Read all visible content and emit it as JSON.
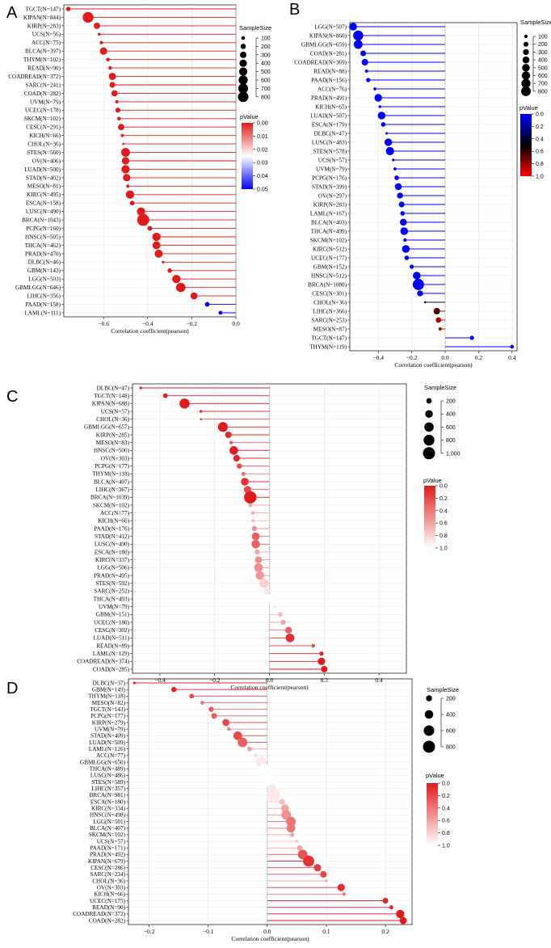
{
  "chart_data": [
    {
      "panel": "A",
      "type": "scatter",
      "xlabel": "Correlation coefficient(pearson)",
      "xlim": [
        -0.78,
        0.0
      ],
      "xticks": [
        -0.6,
        -0.4,
        -0.2,
        0.0
      ],
      "xtick_labels": [
        "−0.6",
        "−0.4",
        "−0.2",
        "0.0"
      ],
      "size_legend": {
        "title": "SampleSize",
        "values": [
          100,
          200,
          300,
          400,
          500,
          600,
          700,
          800
        ],
        "labels": [
          "100",
          "200",
          "300",
          "400",
          "500",
          "600",
          "700",
          "800"
        ]
      },
      "color_legend": {
        "title": "pValue",
        "min": 0.0,
        "max": 0.05,
        "ticks": [
          "0.00",
          "0.01",
          "0.02",
          "0.03",
          "0.04",
          "0.05"
        ],
        "colors": [
          "#e31a1c",
          "#ffffff",
          "#0000ff"
        ]
      },
      "categories": [
        "TGCT(N=147)",
        "KIPAN(N=844)",
        "KIRP(N=283)",
        "UCS(N=56)",
        "ACC(N=75)",
        "BLCA(N=397)",
        "THYM(N=102)",
        "READ(N=90)",
        "COADREAD(N=372)",
        "SARC(N=241)",
        "COAD(N=282)",
        "UVM(N=79)",
        "UCEC(N=178)",
        "SKCM(N=102)",
        "CESC(N=291)",
        "KICH(N=66)",
        "CHOL(N=36)",
        "STES(N=560)",
        "OV(N=406)",
        "LUAD(N=500)",
        "STAD(N=402)",
        "MESO(N=81)",
        "KIRC(N=495)",
        "ESCA(N=158)",
        "LUSC(N=490)",
        "BRCA(N=1043)",
        "PCPG(N=160)",
        "HNSC(N=505)",
        "THCA(N=462)",
        "PRAD(N=470)",
        "DLBC(N=46)",
        "GBM(N=143)",
        "LGG(N=503)",
        "GBMLGG(N=646)",
        "LIHC(N=356)",
        "PAAD(N=158)",
        "LAML(N=111)"
      ],
      "x": [
        -0.76,
        -0.67,
        -0.63,
        -0.62,
        -0.61,
        -0.6,
        -0.58,
        -0.57,
        -0.56,
        -0.56,
        -0.55,
        -0.54,
        -0.535,
        -0.53,
        -0.52,
        -0.515,
        -0.51,
        -0.5,
        -0.5,
        -0.5,
        -0.495,
        -0.49,
        -0.48,
        -0.47,
        -0.43,
        -0.42,
        -0.39,
        -0.36,
        -0.36,
        -0.35,
        -0.33,
        -0.3,
        -0.27,
        -0.25,
        -0.19,
        -0.13,
        -0.07
      ],
      "n": [
        147,
        844,
        283,
        56,
        75,
        397,
        102,
        90,
        372,
        241,
        282,
        79,
        178,
        102,
        291,
        66,
        36,
        560,
        406,
        500,
        402,
        81,
        495,
        158,
        490,
        1043,
        160,
        505,
        462,
        470,
        46,
        143,
        503,
        646,
        356,
        158,
        111
      ],
      "p": [
        0,
        0,
        0,
        0,
        0,
        0,
        0,
        0,
        0,
        0,
        0,
        0,
        0,
        0,
        0,
        0,
        0,
        0,
        0,
        0,
        0,
        0,
        0,
        0,
        0,
        0,
        0,
        0,
        0,
        0,
        0,
        0,
        0,
        0,
        0,
        0.05,
        0.05
      ]
    },
    {
      "panel": "B",
      "type": "scatter",
      "xlabel": "Correlation coefficient(pearson)",
      "xlim": [
        -0.57,
        0.43
      ],
      "xticks": [
        -0.4,
        -0.2,
        0.0,
        0.2,
        0.4
      ],
      "xtick_labels": [
        "−0.4",
        "−0.2",
        "0.0",
        "0.2",
        "0.4"
      ],
      "size_legend": {
        "title": "SampleSize",
        "values": [
          100,
          200,
          300,
          400,
          500,
          600,
          700,
          800
        ],
        "labels": [
          "100",
          "200",
          "300",
          "400",
          "500",
          "600",
          "700",
          "800"
        ]
      },
      "color_legend": {
        "title": "pValue",
        "min": 0.0,
        "max": 1.0,
        "ticks": [
          "0.0",
          "0.2",
          "0.4",
          "0.6",
          "0.8",
          "1.0"
        ],
        "colors": [
          "#0000ff",
          "#000000",
          "#ff0000"
        ]
      },
      "categories": [
        "LGG(N=507)",
        "KIPAN(N=860)",
        "GBMLGG(N=659)",
        "COAD(N=281)",
        "COADREAD(N=369)",
        "READ(N=88)",
        "PAAD(N=156)",
        "ACC(N=76)",
        "PRAD(N=491)",
        "KICH(N=65)",
        "LUAD(N=507)",
        "ESCA(N=179)",
        "DLBC(N=47)",
        "LUSC(N=483)",
        "STES(N=578)",
        "UCS(N=57)",
        "UVM(N=79)",
        "PCPG(N=176)",
        "STAD(N=399)",
        "OV(N=297)",
        "KIRP(N=283)",
        "LAML(N=167)",
        "BLCA(N=403)",
        "THCA(N=499)",
        "SKCM(N=102)",
        "KIRC(N=512)",
        "UCEC(N=177)",
        "GBM(N=152)",
        "HNSC(N=512)",
        "BRCA(N=1080)",
        "CESC(N=301)",
        "CHOL(N=36)",
        "LIHC(N=366)",
        "SARC(N=253)",
        "MESO(N=87)",
        "TGCT(N=147)",
        "THYM(N=119)"
      ],
      "x": [
        -0.55,
        -0.52,
        -0.52,
        -0.49,
        -0.48,
        -0.47,
        -0.46,
        -0.42,
        -0.4,
        -0.39,
        -0.38,
        -0.37,
        -0.35,
        -0.34,
        -0.33,
        -0.31,
        -0.3,
        -0.29,
        -0.28,
        -0.27,
        -0.26,
        -0.255,
        -0.25,
        -0.245,
        -0.24,
        -0.235,
        -0.23,
        -0.2,
        -0.17,
        -0.16,
        -0.15,
        -0.12,
        -0.05,
        -0.04,
        -0.03,
        0.16,
        0.4
      ],
      "n": [
        507,
        860,
        659,
        281,
        369,
        88,
        156,
        76,
        491,
        65,
        507,
        179,
        47,
        483,
        578,
        57,
        79,
        176,
        399,
        297,
        283,
        167,
        403,
        499,
        102,
        512,
        177,
        152,
        512,
        1080,
        301,
        36,
        366,
        253,
        87,
        147,
        119
      ],
      "p": [
        0,
        0,
        0,
        0,
        0,
        0,
        0,
        0,
        0,
        0,
        0,
        0,
        0,
        0,
        0,
        0,
        0,
        0,
        0,
        0,
        0,
        0,
        0,
        0,
        0,
        0,
        0,
        0,
        0,
        0,
        0,
        0.4,
        0.65,
        0.85,
        0.8,
        0,
        0
      ]
    },
    {
      "panel": "C",
      "type": "scatter",
      "xlabel": "Correlation coefficient(pearson)",
      "xlim": [
        -0.5,
        0.5
      ],
      "xticks": [
        -0.4,
        -0.2,
        0.0,
        0.2,
        0.4
      ],
      "xtick_labels": [
        "−0.4",
        "−0.2",
        "0.0",
        "0.2",
        "0.4"
      ],
      "size_legend": {
        "title": "SampleSize",
        "values": [
          200,
          400,
          600,
          800,
          1000
        ],
        "labels": [
          "200",
          "400",
          "600",
          "800",
          "1,000"
        ]
      },
      "color_legend": {
        "title": "pValue",
        "min": 0.0,
        "max": 1.0,
        "ticks": [
          "0.0",
          "0.2",
          "0.4",
          "0.6",
          "0.8",
          "1.0"
        ],
        "colors": [
          "#e31a1c",
          "#ffffff"
        ]
      },
      "categories": [
        "DLBC(N=47)",
        "TGCT(N=148)",
        "KIPAN(N=688)",
        "UCS(N=57)",
        "CHOL(N=36)",
        "GBMLGG(N=657)",
        "KIRP(N=285)",
        "MESO(N=83)",
        "HNSC(N=500)",
        "OV(N=303)",
        "PCPG(N=177)",
        "THYM(N=118)",
        "BLCA(N=407)",
        "LIHC(N=367)",
        "BRCA(N=1039)",
        "SKCM(N=102)",
        "ACC(N=77)",
        "KICH(N=66)",
        "PAAD(N=176)",
        "STAD(N=412)",
        "LUSC(N=490)",
        "ESCA(N=180)",
        "KIRC(N=337)",
        "LGG(N=506)",
        "PRAD(N=495)",
        "STES(N=592)",
        "SARC(N=252)",
        "THCA(N=493)",
        "UVM(N=79)",
        "GBM(N=151)",
        "UCEC(N=180)",
        "CESC(N=302)",
        "LUAD(N=511)",
        "READ(N=89)",
        "LAML(N=129)",
        "COADREAD(N=374)",
        "COAD(N=285)"
      ],
      "x": [
        -0.47,
        -0.38,
        -0.31,
        -0.25,
        -0.25,
        -0.17,
        -0.15,
        -0.14,
        -0.13,
        -0.12,
        -0.11,
        -0.095,
        -0.09,
        -0.08,
        -0.07,
        -0.07,
        -0.06,
        -0.06,
        -0.055,
        -0.05,
        -0.05,
        -0.045,
        -0.04,
        -0.04,
        -0.035,
        -0.02,
        -0.01,
        0.0,
        0.02,
        0.04,
        0.05,
        0.07,
        0.075,
        0.16,
        0.19,
        0.19,
        0.2
      ],
      "n": [
        47,
        148,
        688,
        57,
        36,
        657,
        285,
        83,
        500,
        303,
        177,
        118,
        407,
        367,
        1039,
        102,
        77,
        66,
        176,
        412,
        490,
        180,
        337,
        506,
        495,
        592,
        252,
        493,
        79,
        151,
        180,
        302,
        511,
        89,
        129,
        374,
        285
      ],
      "p": [
        0,
        0.02,
        0,
        0.1,
        0.2,
        0,
        0.05,
        0.3,
        0.01,
        0.05,
        0.2,
        0.4,
        0.1,
        0.2,
        0,
        0.6,
        0.6,
        0.7,
        0.5,
        0.3,
        0.3,
        0.6,
        0.5,
        0.5,
        0.55,
        0.8,
        0.9,
        1.0,
        0.9,
        0.7,
        0.6,
        0.3,
        0.1,
        0.2,
        0.05,
        0.0,
        0.0
      ]
    },
    {
      "panel": "D",
      "type": "scatter",
      "xlabel": "Correlation coefficient(pearson)",
      "xlim": [
        -0.235,
        0.245
      ],
      "xticks": [
        -0.2,
        -0.1,
        0.0,
        0.1,
        0.2
      ],
      "xtick_labels": [
        "−0.2",
        "−0.1",
        "0.0",
        "0.1",
        "0.2"
      ],
      "size_legend": {
        "title": "SampleSize",
        "values": [
          200,
          400,
          600,
          800
        ],
        "labels": [
          "200",
          "400",
          "600",
          "800"
        ]
      },
      "color_legend": {
        "title": "pValue",
        "min": 0.0,
        "max": 1.0,
        "ticks": [
          "0.0",
          "0.2",
          "0.4",
          "0.6",
          "0.8",
          "1.0"
        ],
        "colors": [
          "#e31a1c",
          "#ffffff"
        ]
      },
      "categories": [
        "DLBC(N=37)",
        "GBM(N=149)",
        "THYM(N=118)",
        "MESO(N=82)",
        "TGCT(N=143)",
        "PCPG(N=177)",
        "KIRP(N=279)",
        "UVM(N=79)",
        "STAD(N=409)",
        "LUAD(N=509)",
        "LAML(N=126)",
        "ACC(N=77)",
        "GBMLGG(N=650)",
        "THCA(N=489)",
        "LUSC(N=486)",
        "STES(N=589)",
        "LIHC(N=357)",
        "BRCA(N=981)",
        "ESCA(N=180)",
        "KIRC(N=334)",
        "HNSC(N=498)",
        "LGG(N=501)",
        "BLCA(N=407)",
        "SKCM(N=102)",
        "UCS(N=57)",
        "PAAD(N=171)",
        "PRAD(N=492)",
        "KIPAN(N=679)",
        "CESC(N=286)",
        "SARC(N=234)",
        "CHOL(N=36)",
        "OV(N=303)",
        "KICH(N=66)",
        "UCEC(N=175)",
        "READ(N=90)",
        "COADREAD(N=372)",
        "COAD(N=282)"
      ],
      "x": [
        -0.225,
        -0.158,
        -0.128,
        -0.11,
        -0.095,
        -0.09,
        -0.07,
        -0.065,
        -0.05,
        -0.042,
        -0.03,
        -0.02,
        -0.01,
        -0.005,
        0.0,
        0.005,
        0.008,
        0.01,
        0.025,
        0.03,
        0.032,
        0.04,
        0.04,
        0.042,
        0.05,
        0.055,
        0.06,
        0.07,
        0.085,
        0.095,
        0.1,
        0.125,
        0.13,
        0.2,
        0.21,
        0.225,
        0.23
      ],
      "n": [
        37,
        149,
        118,
        82,
        143,
        177,
        279,
        79,
        409,
        509,
        126,
        77,
        650,
        489,
        486,
        589,
        357,
        981,
        180,
        334,
        498,
        501,
        407,
        102,
        57,
        171,
        492,
        679,
        286,
        234,
        36,
        303,
        66,
        175,
        90,
        372,
        282
      ],
      "p": [
        0.05,
        0.05,
        0.2,
        0.4,
        0.3,
        0.3,
        0.2,
        0.5,
        0.2,
        0.3,
        0.6,
        0.85,
        0.9,
        1.0,
        1.0,
        1.0,
        0.9,
        0.9,
        0.7,
        0.6,
        0.5,
        0.4,
        0.4,
        0.6,
        0.75,
        0.6,
        0.25,
        0.1,
        0.15,
        0.2,
        0.6,
        0.1,
        0.4,
        0.05,
        0.05,
        0.0,
        0.0
      ]
    }
  ]
}
